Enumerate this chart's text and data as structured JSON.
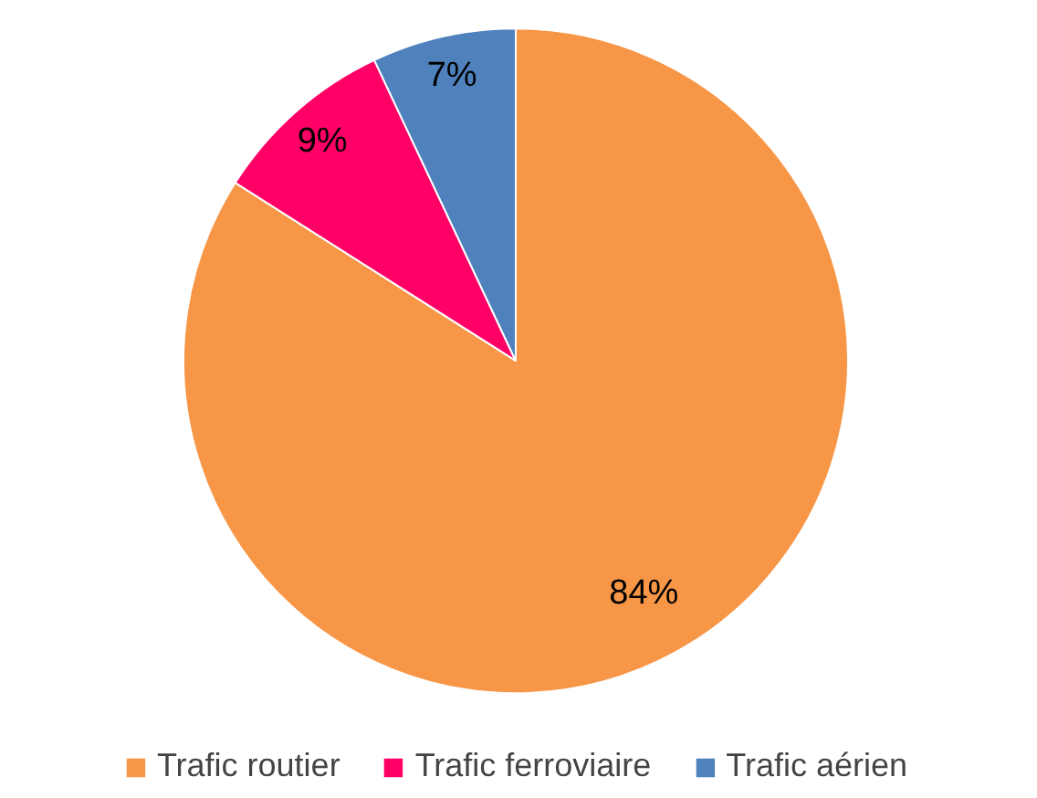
{
  "chart_data": {
    "type": "pie",
    "categories": [
      "Trafic routier",
      "Trafic ferroviaire",
      "Trafic aérien"
    ],
    "values": [
      84,
      9,
      7
    ],
    "colors": [
      "#f79646",
      "#ff0066",
      "#4f81bd"
    ],
    "value_labels": [
      "84%",
      "9%",
      "7%"
    ],
    "legend": "bottom"
  }
}
